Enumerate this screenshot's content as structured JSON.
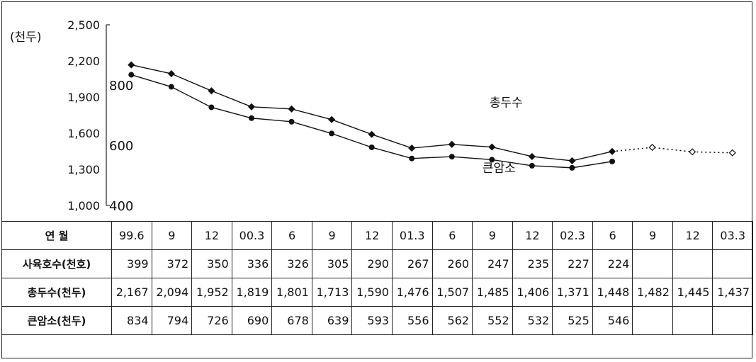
{
  "chart_data": {
    "type": "line",
    "unit_label": "(천두)",
    "left_axis_ticks": [
      "2,500",
      "2,200",
      "1,900",
      "1,600",
      "1,300",
      "1,000"
    ],
    "left_axis_range": [
      1000,
      2500
    ],
    "right_axis_ticks": [
      "800",
      "600",
      "400"
    ],
    "right_axis_range": [
      400,
      1000
    ],
    "x_categories": [
      "99.6",
      "9",
      "12",
      "00.3",
      "6",
      "9",
      "12",
      "01.3",
      "6",
      "9",
      "12",
      "02.3",
      "6",
      "9",
      "12",
      "03.3"
    ],
    "series": [
      {
        "name": "총두수",
        "axis": "left",
        "values": [
          2167,
          2094,
          1952,
          1819,
          1801,
          1713,
          1590,
          1476,
          1507,
          1485,
          1406,
          1371,
          1448,
          1482,
          1445,
          1437
        ],
        "forecast_from_index": 12,
        "color": "#111111"
      },
      {
        "name": "큰암소",
        "axis": "right",
        "values": [
          834,
          794,
          726,
          690,
          678,
          639,
          593,
          556,
          562,
          552,
          532,
          525,
          546
        ],
        "color": "#111111"
      }
    ]
  },
  "table": {
    "header_label": "연  월",
    "rows": [
      {
        "label": "사육호수(천호)",
        "values": [
          "399",
          "372",
          "350",
          "336",
          "326",
          "305",
          "290",
          "267",
          "260",
          "247",
          "235",
          "227",
          "224",
          "",
          "",
          ""
        ]
      },
      {
        "label": "총두수(천두)",
        "values": [
          "2,167",
          "2,094",
          "1,952",
          "1,819",
          "1,801",
          "1,713",
          "1,590",
          "1,476",
          "1,507",
          "1,485",
          "1,406",
          "1,371",
          "1,448",
          "1,482",
          "1,445",
          "1,437"
        ]
      },
      {
        "label": "큰암소(천두)",
        "values": [
          "834",
          "794",
          "726",
          "690",
          "678",
          "639",
          "593",
          "556",
          "562",
          "552",
          "532",
          "525",
          "546",
          "",
          "",
          ""
        ]
      }
    ]
  }
}
